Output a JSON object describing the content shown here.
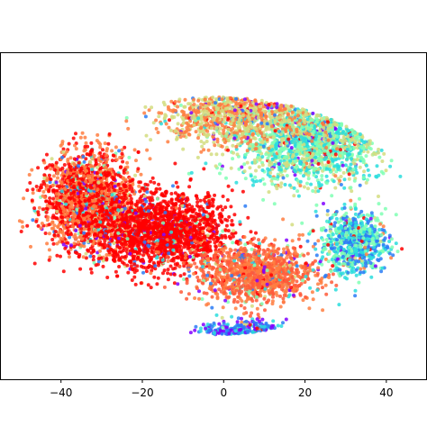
{
  "chart_data": {
    "type": "scatter",
    "title": "",
    "xlabel": "",
    "ylabel": "",
    "legend": "none",
    "grid": false,
    "xlim": [
      -55,
      50
    ],
    "ylim": [
      -62,
      62
    ],
    "x_ticks": [
      -40,
      -20,
      0,
      20,
      40
    ],
    "x_tick_labels": [
      "−40",
      "−20",
      "0",
      "20",
      "40"
    ],
    "colormap": "rainbow",
    "colormap_stops": [
      "#8000ff",
      "#2b7cf6",
      "#2adddd",
      "#80ffb4",
      "#d4dd80",
      "#ff7e41",
      "#ff0000"
    ],
    "point_count_approx": 20000,
    "clusters": [
      {
        "region": "upper-right",
        "center": [
          22,
          28
        ],
        "spread": [
          15,
          13
        ],
        "dominant_colors": [
          "#80ffb4",
          "#d4dd80",
          "#2adddd"
        ]
      },
      {
        "region": "top-center",
        "center": [
          3,
          38
        ],
        "spread": [
          16,
          9
        ],
        "dominant_colors": [
          "#d4dd80",
          "#ff7e41"
        ]
      },
      {
        "region": "left",
        "center": [
          -33,
          6
        ],
        "spread": [
          10,
          15
        ],
        "dominant_colors": [
          "#ff0000",
          "#ff7e41"
        ]
      },
      {
        "region": "center-left",
        "center": [
          -15,
          -6
        ],
        "spread": [
          14,
          12
        ],
        "dominant_colors": [
          "#ff0000"
        ]
      },
      {
        "region": "bottom-center",
        "center": [
          8,
          -22
        ],
        "spread": [
          12,
          9
        ],
        "dominant_colors": [
          "#ff5a3a",
          "#ff7e41"
        ]
      },
      {
        "region": "bottom",
        "center": [
          5,
          -45
        ],
        "spread": [
          9,
          4
        ],
        "dominant_colors": [
          "#2b7cf6",
          "#2adddd",
          "#8000ff"
        ]
      },
      {
        "region": "lower-right",
        "center": [
          32,
          -10
        ],
        "spread": [
          7,
          10
        ],
        "dominant_colors": [
          "#2adddd",
          "#80ffb4",
          "#2b7cf6"
        ]
      }
    ]
  }
}
